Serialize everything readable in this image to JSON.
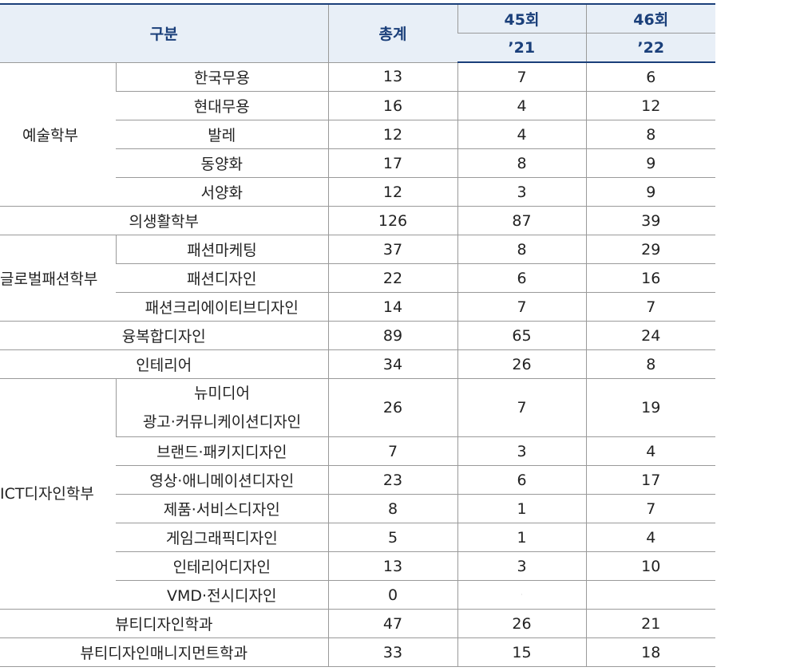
{
  "header": {
    "category": "구분",
    "total": "총계",
    "session45": "45회",
    "year21": "’21",
    "session46": "46회",
    "year22": "’22"
  },
  "groups": {
    "art": "예술학부",
    "global_fashion": "글로벌패션학부",
    "ict": "ICT디자인학부"
  },
  "rows": [
    {
      "name": "한국무용",
      "total": "13",
      "s45": "7",
      "s46": "6"
    },
    {
      "name": "현대무용",
      "total": "16",
      "s45": "4",
      "s46": "12"
    },
    {
      "name": "발레",
      "total": "12",
      "s45": "4",
      "s46": "8"
    },
    {
      "name": "동양화",
      "total": "17",
      "s45": "8",
      "s46": "9"
    },
    {
      "name": "서양화",
      "total": "12",
      "s45": "3",
      "s46": "9"
    },
    {
      "name": "의생활학부",
      "total": "126",
      "s45": "87",
      "s46": "39"
    },
    {
      "name": "패션마케팅",
      "total": "37",
      "s45": "8",
      "s46": "29"
    },
    {
      "name": "패션디자인",
      "total": "22",
      "s45": "6",
      "s46": "16"
    },
    {
      "name": "패션크리에이티브디자인",
      "total": "14",
      "s45": "7",
      "s46": "7"
    },
    {
      "name": "융복합디자인",
      "total": "89",
      "s45": "65",
      "s46": "24"
    },
    {
      "name": "인테리어",
      "total": "34",
      "s45": "26",
      "s46": "8"
    },
    {
      "name_line1": "뉴미디어",
      "name_line2": "광고·커뮤니케이션디자인",
      "total": "26",
      "s45": "7",
      "s46": "19"
    },
    {
      "name": "브랜드·패키지디자인",
      "total": "7",
      "s45": "3",
      "s46": "4"
    },
    {
      "name": "영상·애니메이션디자인",
      "total": "23",
      "s45": "6",
      "s46": "17"
    },
    {
      "name": "제품·서비스디자인",
      "total": "8",
      "s45": "1",
      "s46": "7"
    },
    {
      "name": "게임그래픽디자인",
      "total": "5",
      "s45": "1",
      "s46": "4"
    },
    {
      "name": "인테리어디자인",
      "total": "13",
      "s45": "3",
      "s46": "10"
    },
    {
      "name": "VMD·전시디자인",
      "total": "0",
      "s45": "·",
      "s46": ""
    },
    {
      "name": "뷰티디자인학과",
      "total": "47",
      "s45": "26",
      "s46": "21"
    },
    {
      "name": "뷰티디자인매니지먼트학과",
      "total": "33",
      "s45": "15",
      "s46": "18"
    }
  ]
}
